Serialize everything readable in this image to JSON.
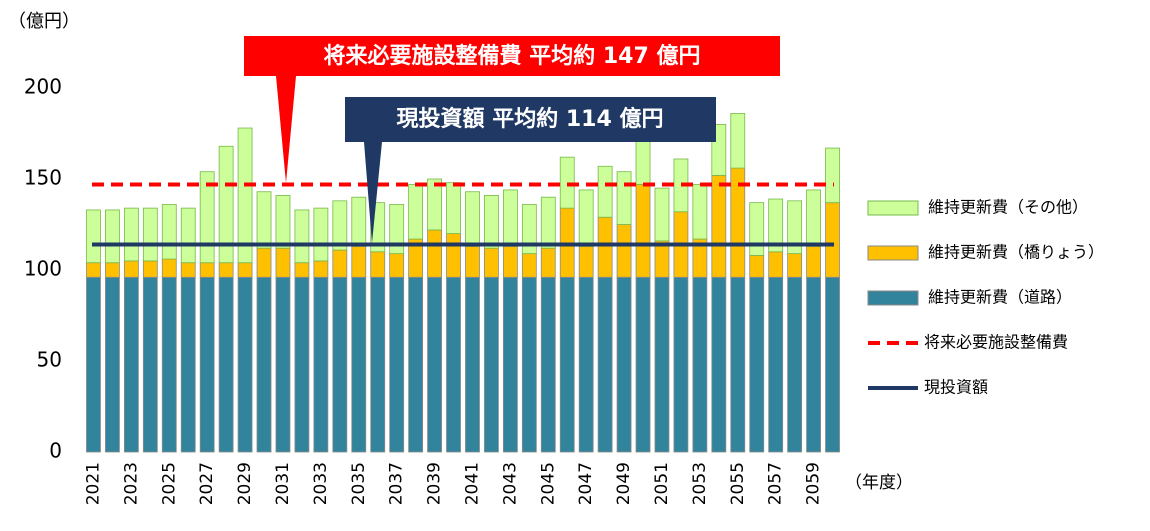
{
  "chart_data": {
    "type": "stacked_bar",
    "y_unit_label": "（億円）",
    "x_unit_label": "（年度）",
    "categories": [
      "2021",
      null,
      "2023",
      null,
      "2025",
      null,
      "2027",
      null,
      "2029",
      null,
      "2031",
      null,
      "2033",
      null,
      "2035",
      null,
      "2037",
      null,
      "2039",
      null,
      "2041",
      null,
      "2043",
      null,
      "2045",
      null,
      "2047",
      null,
      "2049",
      null,
      "2051",
      null,
      "2053",
      null,
      "2055",
      null,
      "2057",
      null,
      "2059",
      null
    ],
    "series": [
      {
        "name": "維持更新費（道路）",
        "color": "#31849b",
        "values": [
          96,
          96,
          96,
          96,
          96,
          96,
          96,
          96,
          96,
          96,
          96,
          96,
          96,
          96,
          96,
          96,
          96,
          96,
          96,
          96,
          96,
          96,
          96,
          96,
          96,
          96,
          96,
          96,
          96,
          96,
          96,
          96,
          96,
          96,
          96,
          96,
          96,
          96,
          96,
          96
        ]
      },
      {
        "name": "維持更新費（橋りょう）",
        "color": "#ffc000",
        "values": [
          8,
          8,
          9,
          9,
          10,
          8,
          8,
          8,
          8,
          16,
          16,
          8,
          9,
          15,
          17,
          14,
          13,
          21,
          26,
          24,
          17,
          16,
          17,
          13,
          16,
          38,
          17,
          33,
          29,
          51,
          20,
          36,
          21,
          56,
          60,
          12,
          14,
          13,
          17,
          41
        ]
      },
      {
        "name": "維持更新費（その他）",
        "color": "#ccff99",
        "values": [
          29,
          29,
          29,
          29,
          30,
          30,
          50,
          64,
          74,
          31,
          29,
          29,
          29,
          27,
          27,
          27,
          27,
          30,
          28,
          28,
          30,
          29,
          31,
          27,
          28,
          28,
          31,
          28,
          29,
          25,
          29,
          29,
          30,
          28,
          30,
          29,
          29,
          29,
          31,
          30
        ]
      }
    ],
    "reference_lines": [
      {
        "name": "将来必要施設整備費",
        "value": 147,
        "color": "#ff0000",
        "style": "dashed"
      },
      {
        "name": "現投資額",
        "value": 114,
        "color": "#1f3864",
        "style": "solid"
      }
    ],
    "annotations": [
      {
        "text": "将来必要施設整備費  平均約 147 億円",
        "color": "#ff0000"
      },
      {
        "text": "現投資額  平均約 114 億円",
        "color": "#1f3864"
      }
    ],
    "ylim": [
      0,
      200
    ],
    "yticks": [
      0,
      50,
      100,
      150,
      200
    ],
    "grid": false,
    "legend": "right"
  }
}
